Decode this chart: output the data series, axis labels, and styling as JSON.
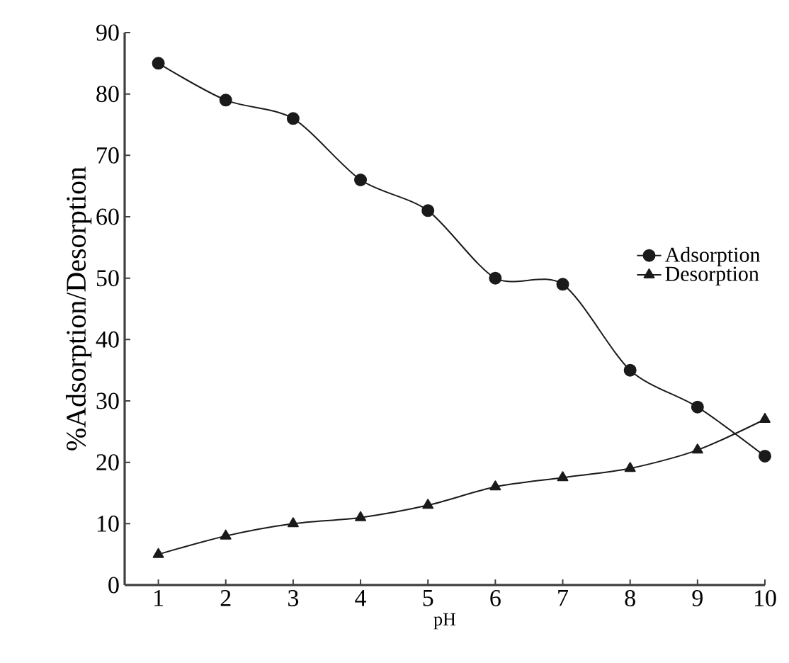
{
  "chart_data": {
    "type": "line",
    "xlabel": "pH",
    "ylabel": "%Adsorption/Desorption",
    "x": [
      1,
      2,
      3,
      4,
      5,
      6,
      7,
      8,
      9,
      10
    ],
    "series": [
      {
        "name": "Adsorption",
        "color": "#1a1a1a",
        "marker": "circle",
        "values": [
          85,
          79,
          76,
          66,
          61,
          50,
          49,
          35,
          29,
          21
        ]
      },
      {
        "name": "Desorption",
        "color": "#1a1a1a",
        "marker": "triangle",
        "values": [
          5,
          8,
          10,
          11,
          13,
          16,
          17.5,
          19,
          22,
          27
        ]
      }
    ],
    "xlim": [
      0.5,
      10
    ],
    "ylim": [
      0,
      90
    ],
    "xticks": [
      1,
      2,
      3,
      4,
      5,
      6,
      7,
      8,
      9,
      10
    ],
    "yticks": [
      0,
      10,
      20,
      30,
      40,
      50,
      60,
      70,
      80,
      90
    ],
    "legend": "right",
    "grid": false
  }
}
